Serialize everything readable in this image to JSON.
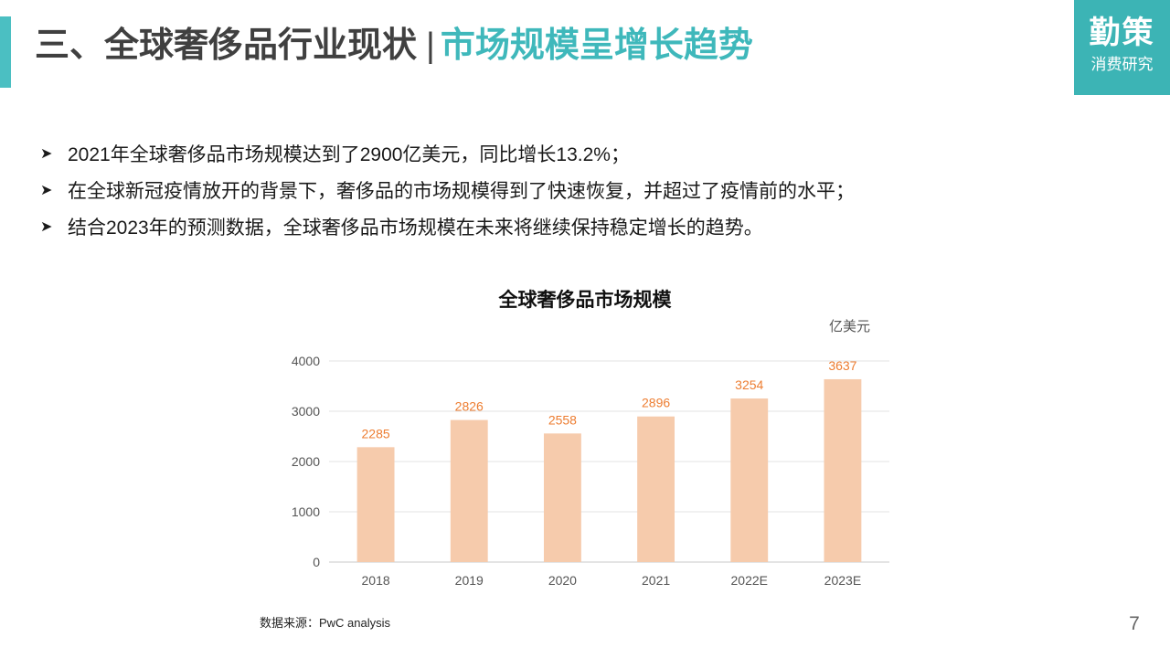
{
  "header": {
    "title_main": "三、全球奢侈品行业现状",
    "title_sep": "|",
    "title_sub": "市场规模呈增长趋势",
    "accent_color": "#4bbfc2"
  },
  "logo": {
    "main": "勤策",
    "sub": "消费研究",
    "bg_color": "#3cb4b5"
  },
  "bullets": [
    {
      "icon": "arrow-right-icon",
      "text": "2021年全球奢侈品市场规模达到了2900亿美元，同比增长13.2%；"
    },
    {
      "icon": "arrow-right-icon",
      "text": "在全球新冠疫情放开的背景下，奢侈品的市场规模得到了快速恢复，并超过了疫情前的水平；"
    },
    {
      "icon": "arrow-right-icon",
      "text": "结合2023年的预测数据，全球奢侈品市场规模在未来将继续保持稳定增长的趋势。"
    }
  ],
  "chart_data": {
    "type": "bar",
    "title": "全球奢侈品市场规模",
    "unit_label": "亿美元",
    "categories": [
      "2018",
      "2019",
      "2020",
      "2021",
      "2022E",
      "2023E"
    ],
    "values": [
      2285,
      2826,
      2558,
      2896,
      3254,
      3637
    ],
    "yticks": [
      0,
      1000,
      2000,
      3000,
      4000
    ],
    "ylim": [
      0,
      4000
    ],
    "grid": true,
    "legend": "none",
    "bar_color": "#f6cbac",
    "label_color": "#ed7d31"
  },
  "source": "数据来源：PwC analysis",
  "page_number": "7"
}
